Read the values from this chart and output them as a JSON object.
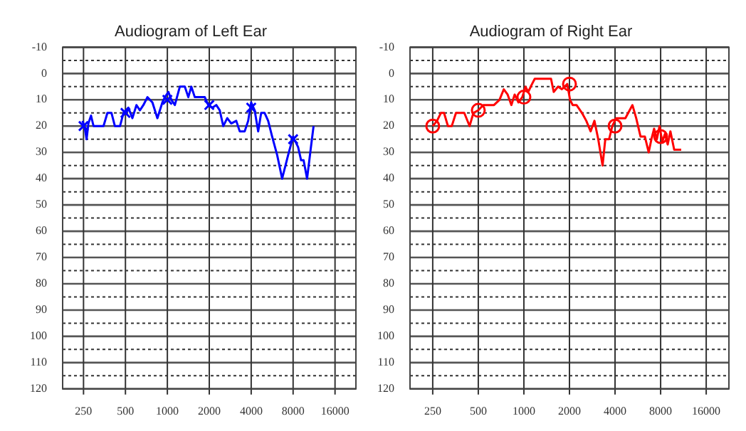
{
  "chart_data": [
    {
      "type": "line",
      "title": "Audiogram of Left Ear",
      "log": "x",
      "grid": true,
      "legend": false,
      "xlim": [
        177,
        22600
      ],
      "xticks": [
        250,
        500,
        1000,
        2000,
        4000,
        8000,
        16000
      ],
      "ylim": [
        120,
        -10
      ],
      "yticks": [
        -10,
        {
          "value": -5,
          "label": null
        },
        0,
        {
          "value": 5,
          "label": null
        },
        10,
        {
          "value": 15,
          "label": null
        },
        20,
        {
          "value": 25,
          "label": null
        },
        30,
        {
          "value": 35,
          "label": null
        },
        40,
        {
          "value": 45,
          "label": null
        },
        50,
        {
          "value": 55,
          "label": null
        },
        60,
        {
          "value": 65,
          "label": null
        },
        70,
        {
          "value": 75,
          "label": null
        },
        80,
        {
          "value": 85,
          "label": null
        },
        90,
        {
          "value": 95,
          "label": null
        },
        100,
        {
          "value": 105,
          "label": null
        },
        110,
        {
          "value": 115,
          "label": null
        },
        120
      ],
      "series": [
        {
          "color": "#0000ff",
          "marker": "none",
          "x": [
            246,
            256,
            263,
            271,
            283,
            295,
            348,
            371,
            397,
            420,
            457,
            484,
            525,
            561,
            600,
            635,
            673,
            719,
            781,
            848,
            921,
            960,
            1017,
            1068,
            1132,
            1229,
            1335,
            1414,
            1486,
            1574,
            1857,
            1967,
            2101,
            2245,
            2378,
            2520,
            2693,
            2876,
            3124,
            3309,
            3593,
            3806,
            4000,
            4236,
            4490,
            4717,
            4996,
            5295,
            5657,
            6143,
            6672,
            7371,
            8000,
            8690,
            9130,
            9514,
            10079,
            10685,
            11220
          ],
          "values": [
            18,
            21,
            25,
            19,
            16,
            20,
            20,
            15,
            15,
            20,
            20,
            15,
            13,
            17,
            12,
            14,
            12,
            9,
            11,
            17,
            11,
            9,
            7,
            10,
            12,
            5,
            5,
            9,
            5,
            9,
            9,
            12,
            13,
            12,
            14,
            20,
            17,
            19,
            18,
            22,
            22,
            18,
            11,
            14,
            22,
            15,
            15,
            18,
            24,
            31,
            40,
            31,
            24,
            28,
            33,
            33,
            40,
            29,
            20
          ]
        },
        {
          "type": "scatter",
          "color": "#0000ff",
          "marker": "cross",
          "x": [
            250,
            500,
            1000,
            2000,
            4000,
            8000
          ],
          "values": [
            20,
            15,
            10,
            12,
            13,
            25
          ]
        }
      ]
    },
    {
      "type": "line",
      "title": "Audiogram of Right Ear",
      "log": "x",
      "grid": true,
      "legend": false,
      "xlim": [
        177,
        22600
      ],
      "xticks": [
        250,
        500,
        1000,
        2000,
        4000,
        8000,
        16000
      ],
      "ylim": [
        120,
        -10
      ],
      "yticks": [
        -10,
        {
          "value": -5,
          "label": null
        },
        0,
        {
          "value": 5,
          "label": null
        },
        10,
        {
          "value": 15,
          "label": null
        },
        20,
        {
          "value": 25,
          "label": null
        },
        30,
        {
          "value": 35,
          "label": null
        },
        40,
        {
          "value": 45,
          "label": null
        },
        50,
        {
          "value": 55,
          "label": null
        },
        60,
        {
          "value": 65,
          "label": null
        },
        70,
        {
          "value": 75,
          "label": null
        },
        80,
        {
          "value": 85,
          "label": null
        },
        90,
        {
          "value": 95,
          "label": null
        },
        100,
        {
          "value": 105,
          "label": null
        },
        110,
        {
          "value": 115,
          "label": null
        },
        120
      ],
      "series": [
        {
          "color": "#ff0000",
          "marker": "none",
          "x": [
            250,
            267,
            283,
            297,
            315,
            334,
            356,
            404,
            438,
            464,
            500,
            539,
            561,
            635,
            690,
            737,
            781,
            827,
            869,
            921,
            976,
            1025,
            1068,
            1132,
            1180,
            1511,
            1574,
            1682,
            1782,
            1935,
            2017,
            2101,
            2226,
            2419,
            2583,
            2759,
            2924,
            3098,
            3309,
            3449,
            3653,
            3837,
            4067,
            4680,
            5210,
            5518,
            5897,
            6298,
            6672,
            6955,
            7245,
            7556,
            7870,
            8202,
            8547,
            8908,
            9283,
            9835,
            10945
          ],
          "values": [
            20,
            18,
            15,
            15,
            20,
            20,
            15,
            15,
            20,
            15,
            14,
            12,
            12,
            12,
            10,
            6,
            8,
            12,
            8,
            11,
            9,
            5,
            7,
            4,
            2,
            2,
            7,
            5,
            6,
            4,
            10,
            12,
            12,
            15,
            18,
            22,
            18,
            25,
            35,
            25,
            25,
            20,
            17,
            17,
            12,
            17,
            24,
            24,
            30,
            25,
            21,
            25,
            20,
            26,
            23,
            27,
            22,
            29,
            29
          ]
        },
        {
          "type": "scatter",
          "color": "#ff0000",
          "marker": "circle",
          "x": [
            250,
            500,
            1000,
            2000,
            4000,
            8000
          ],
          "values": [
            20,
            14,
            9,
            4,
            20,
            24
          ]
        }
      ]
    }
  ]
}
